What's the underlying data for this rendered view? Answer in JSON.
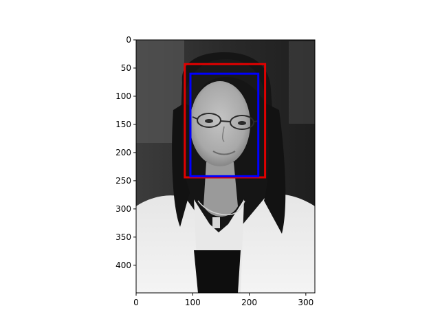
{
  "chart_data": {
    "type": "image",
    "title": "",
    "xlabel": "",
    "ylabel": "",
    "xlim": [
      0,
      316
    ],
    "ylim": [
      449,
      0
    ],
    "y_inverted": true,
    "grid": false,
    "xticks": [
      0,
      100,
      200,
      300
    ],
    "yticks": [
      0,
      50,
      100,
      150,
      200,
      250,
      300,
      350,
      400
    ],
    "image": {
      "content": "grayscale photo: woman with glasses and long dark hair, white top",
      "colormap": "gray"
    },
    "boxes": [
      {
        "color": "#e00000",
        "x0": 86,
        "y0": 43,
        "x1": 228,
        "y1": 244
      },
      {
        "color": "#0000ff",
        "x0": 96,
        "y0": 60,
        "x1": 216,
        "y1": 242
      }
    ]
  }
}
